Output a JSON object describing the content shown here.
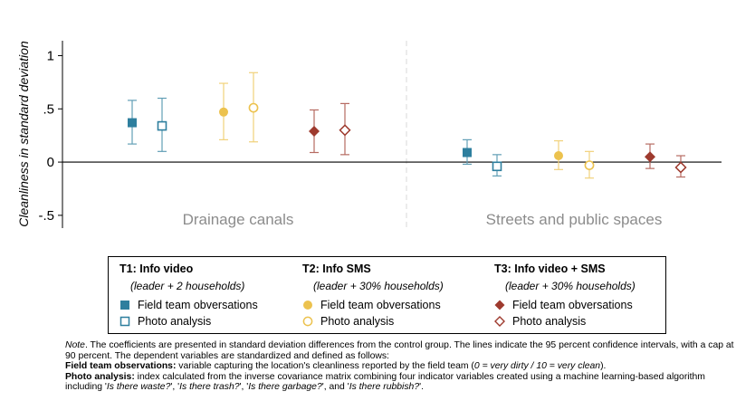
{
  "chart_data": {
    "type": "scatter",
    "ylabel": "Cleanliness in standard deviation",
    "ylim": [
      -0.62,
      1.14
    ],
    "yticks": [
      1,
      0.5,
      0,
      -0.5
    ],
    "ytick_labels": [
      "1",
      ".5",
      "0",
      "-.5"
    ],
    "panels": [
      "Drainage canals",
      "Streets and public spaces"
    ],
    "series": [
      {
        "group": "T1",
        "measure": "Field team observations",
        "marker": "square-filled",
        "color": "#2e7f9e",
        "estimates": [
          0.37,
          0.09
        ],
        "ci_low": [
          0.17,
          -0.02
        ],
        "ci_high": [
          0.58,
          0.21
        ]
      },
      {
        "group": "T1",
        "measure": "Photo analysis",
        "marker": "square-hollow",
        "color": "#2e7f9e",
        "estimates": [
          0.34,
          -0.04
        ],
        "ci_low": [
          0.1,
          -0.13
        ],
        "ci_high": [
          0.6,
          0.07
        ]
      },
      {
        "group": "T2",
        "measure": "Field team observations",
        "marker": "circle-filled",
        "color": "#ecc24e",
        "estimates": [
          0.47,
          0.06
        ],
        "ci_low": [
          0.21,
          -0.07
        ],
        "ci_high": [
          0.74,
          0.2
        ]
      },
      {
        "group": "T2",
        "measure": "Photo analysis",
        "marker": "circle-hollow",
        "color": "#ecc24e",
        "estimates": [
          0.51,
          -0.03
        ],
        "ci_low": [
          0.19,
          -0.15
        ],
        "ci_high": [
          0.84,
          0.1
        ]
      },
      {
        "group": "T3",
        "measure": "Field team observations",
        "marker": "diamond-filled",
        "color": "#9e3a2e",
        "estimates": [
          0.29,
          0.05
        ],
        "ci_low": [
          0.09,
          -0.06
        ],
        "ci_high": [
          0.49,
          0.17
        ]
      },
      {
        "group": "T3",
        "measure": "Photo analysis",
        "marker": "diamond-hollow",
        "color": "#9e3a2e",
        "estimates": [
          0.3,
          -0.05
        ],
        "ci_low": [
          0.07,
          -0.14
        ],
        "ci_high": [
          0.55,
          0.06
        ]
      }
    ]
  },
  "legend": {
    "groups": [
      {
        "title": "T1: Info video",
        "subtitle": "(leader + 2 households)",
        "filled_label": "Field team obversations",
        "hollow_label": "Photo analysis",
        "color": "#2e7f9e",
        "shape": "square"
      },
      {
        "title": "T2: Info SMS",
        "subtitle": "(leader + 30% households)",
        "filled_label": "Field team obversations",
        "hollow_label": "Photo analysis",
        "color": "#ecc24e",
        "shape": "circle"
      },
      {
        "title": "T3: Info video + SMS",
        "subtitle": "(leader + 30% households)",
        "filled_label": "Field team obversations",
        "hollow_label": "Photo analysis",
        "color": "#9e3a2e",
        "shape": "diamond"
      }
    ]
  },
  "note": {
    "intro_label": "Note",
    "intro_text": ". The coefficients are presented in standard deviation differences from the control group. The lines indicate the 95 percent confidence intervals, with a cap at 90 percent. The dependent variables are standardized and defined as follows:",
    "field_label": "Field team observations:",
    "field_text": " variable capturing the location's cleanliness reported by the field team (",
    "field_scale": "0 = very dirty / 10 = very clean",
    "field_end": ").",
    "photo_label": "Photo analysis:",
    "photo_text": " index calculated from the inverse covariance matrix combining four indicator variables created using a machine learning-based algorithm including '",
    "q1": "Is there waste?",
    "sep1": "', '",
    "q2": "Is there trash?",
    "sep2": "', '",
    "q3": "Is there garbage?",
    "sep3": "', and '",
    "q4": "Is there rubbish?",
    "end": "'."
  }
}
